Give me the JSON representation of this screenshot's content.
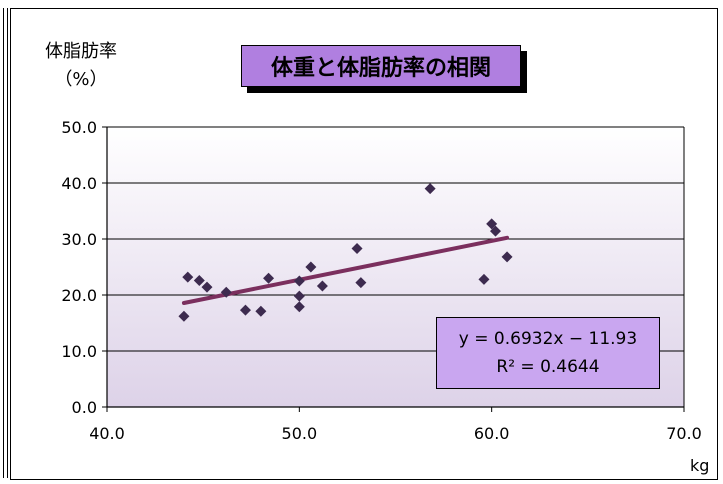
{
  "chart_data": {
    "type": "scatter",
    "title": "体重と体脂肪率の相関",
    "ylabel_line1": "体脂肪率",
    "ylabel_line2": "（%）",
    "xlabel": "kg",
    "xlim": [
      40,
      70
    ],
    "ylim": [
      0,
      50
    ],
    "xticks": [
      "40.0",
      "50.0",
      "60.0",
      "70.0"
    ],
    "yticks": [
      "0.0",
      "10.0",
      "20.0",
      "30.0",
      "40.0",
      "50.0"
    ],
    "grid": true,
    "points": [
      [
        44.0,
        16.2
      ],
      [
        44.2,
        23.2
      ],
      [
        44.8,
        22.6
      ],
      [
        45.2,
        21.4
      ],
      [
        46.2,
        20.5
      ],
      [
        47.2,
        17.3
      ],
      [
        48.0,
        17.1
      ],
      [
        48.4,
        23.0
      ],
      [
        50.0,
        22.5
      ],
      [
        50.0,
        19.8
      ],
      [
        50.0,
        17.9
      ],
      [
        50.6,
        25.0
      ],
      [
        51.2,
        21.6
      ],
      [
        53.0,
        28.3
      ],
      [
        53.2,
        22.2
      ],
      [
        56.8,
        39.0
      ],
      [
        59.6,
        22.8
      ],
      [
        60.0,
        32.7
      ],
      [
        60.2,
        31.4
      ],
      [
        60.8,
        26.8
      ]
    ],
    "trendline": {
      "slope": 0.6932,
      "intercept": -11.93,
      "x_start": 44.0,
      "x_end": 60.8
    },
    "equation": "y = 0.6932x − 11.93",
    "r_squared": "R² = 0.4644",
    "colors": {
      "point": "#3d2b4f",
      "trendline": "#7b2f5e",
      "title_bg": "#b07fe0",
      "equation_bg": "#c9a6f0",
      "plot_bg_top": "#ffffff",
      "plot_bg_bottom": "#ddd2e8"
    }
  }
}
